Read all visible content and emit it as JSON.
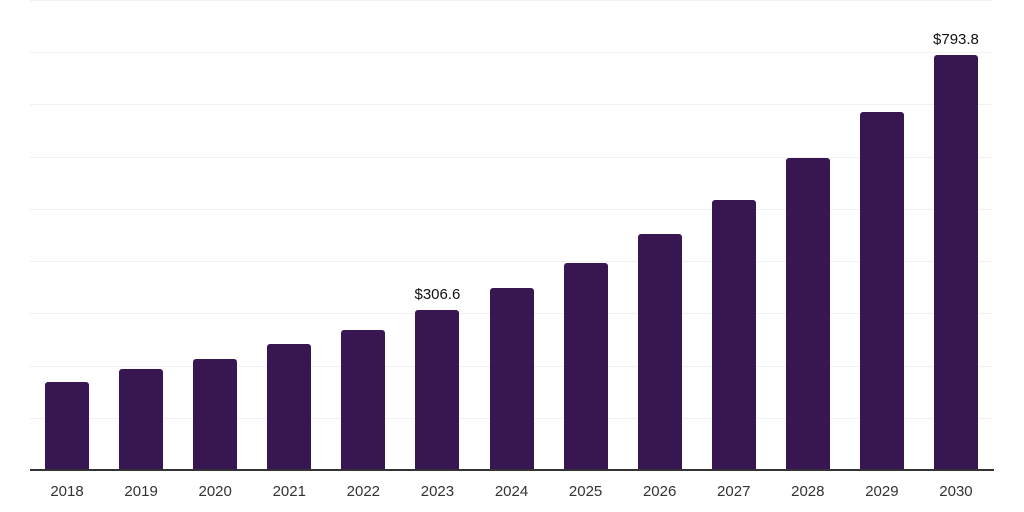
{
  "chart_data": {
    "type": "bar",
    "title": "",
    "xlabel": "",
    "ylabel": "",
    "categories": [
      "2018",
      "2019",
      "2020",
      "2021",
      "2022",
      "2023",
      "2024",
      "2025",
      "2026",
      "2027",
      "2028",
      "2029",
      "2030"
    ],
    "values": [
      169,
      193,
      213,
      241,
      269,
      306.6,
      348,
      396,
      451,
      517,
      597,
      686,
      793.8
    ],
    "data_labels": [
      "",
      "",
      "",
      "",
      "",
      "$306.6",
      "",
      "",
      "",
      "",
      "",
      "",
      "$793.8"
    ],
    "ylim": [
      0,
      900
    ],
    "gridline_interval": 100,
    "grid": true,
    "legend_position": "none",
    "y_tick_labels_visible": false,
    "colors": {
      "bar": "#371652",
      "gridline": "#f1f1f3",
      "axis_line": "#333333",
      "value_label_text": "#111111",
      "tick_text": "#333333",
      "background": "#ffffff"
    }
  }
}
